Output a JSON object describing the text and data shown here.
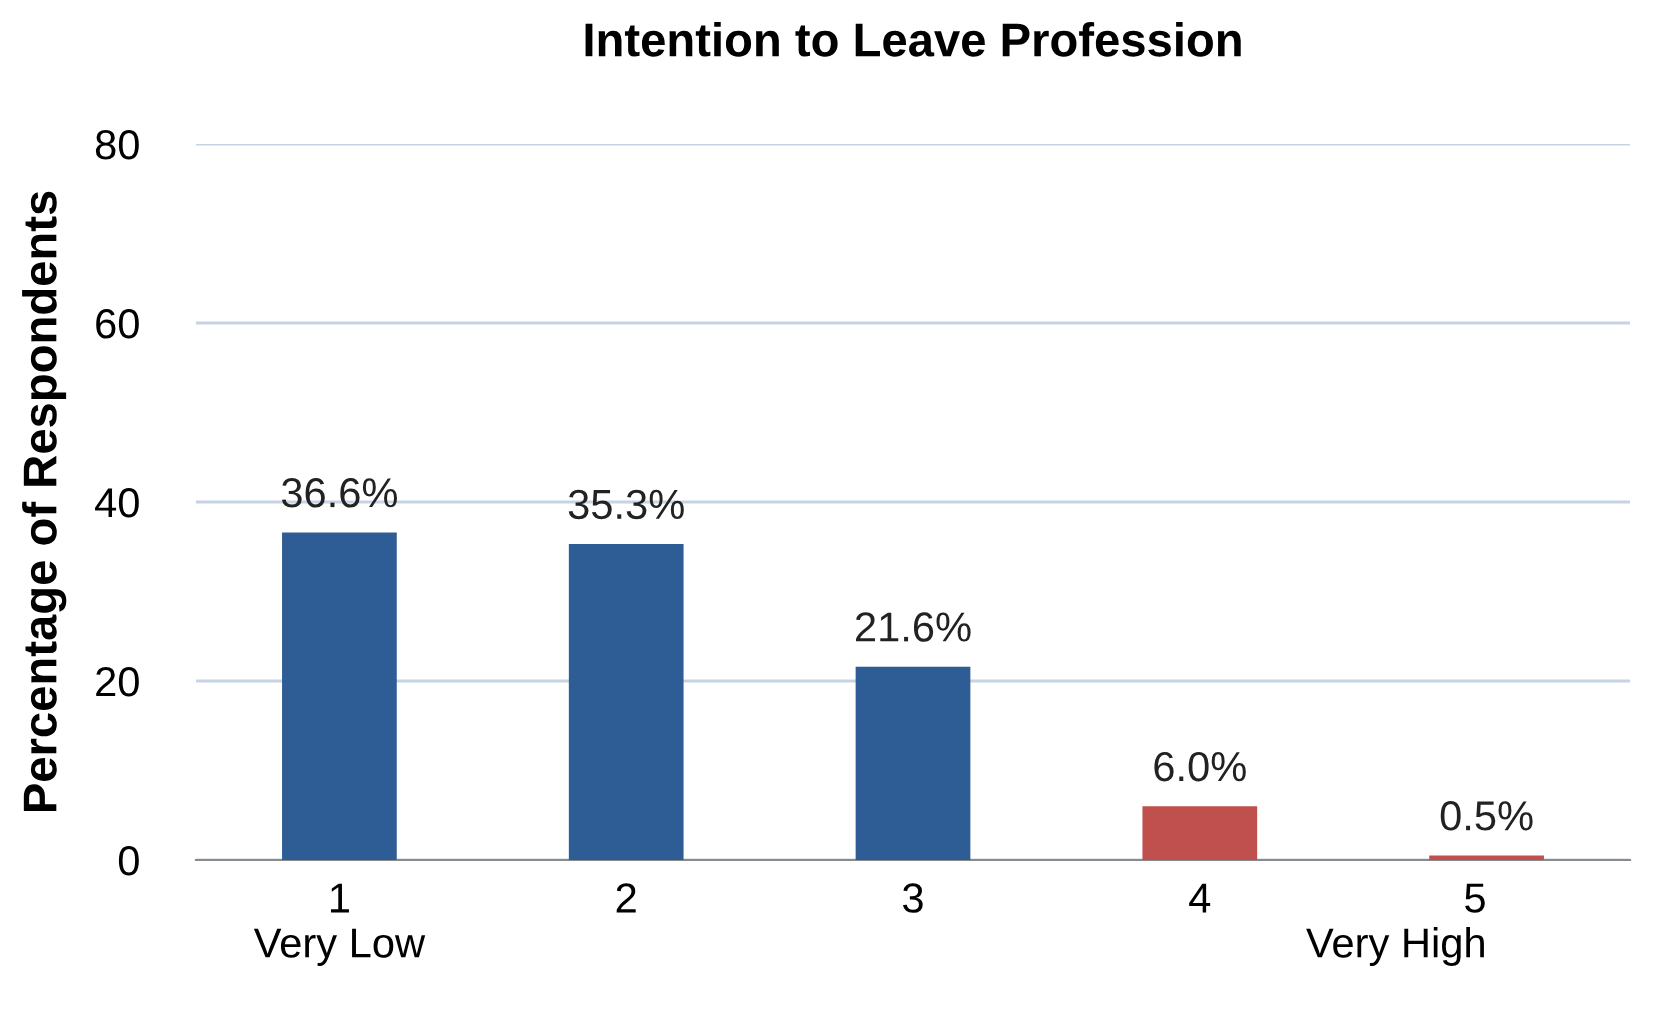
{
  "chart_data": {
    "type": "bar",
    "title": "Intention to Leave Profession",
    "ylabel": "Percentage of Respondents",
    "categories": [
      "1\nVery Low",
      "2",
      "3",
      "4",
      "5\nVery High"
    ],
    "values": [
      36.6,
      35.3,
      21.6,
      6.0,
      0.5
    ],
    "colors": [
      "#2e5d96",
      "#2e5d96",
      "#2e5d96",
      "#c0504d",
      "#c0504d"
    ],
    "value_labels": [
      "36.6%",
      "35.3%",
      "21.6%",
      "6.0%",
      "0.5%"
    ],
    "ylim": [
      0,
      80
    ],
    "yticks": [
      0,
      20,
      40,
      60,
      80
    ],
    "grid": "y"
  }
}
